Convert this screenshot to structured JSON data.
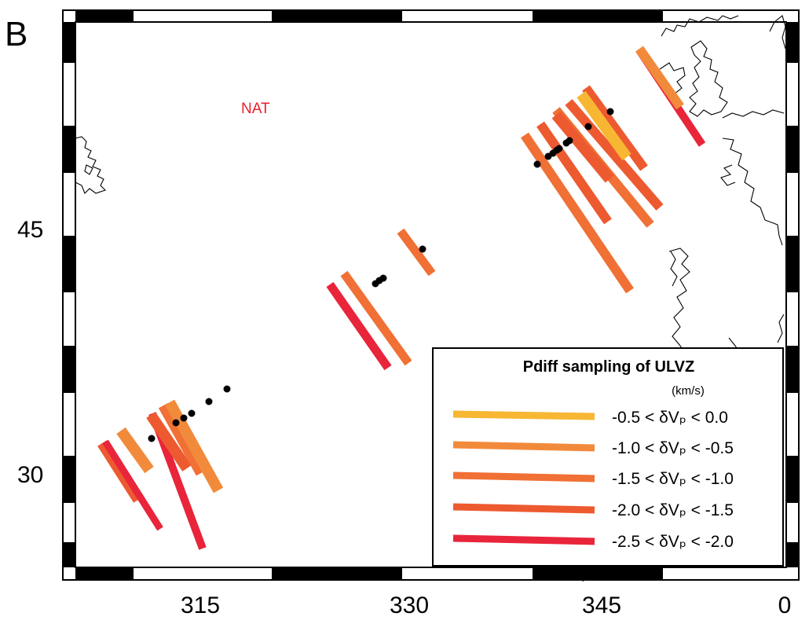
{
  "panel_label": "B",
  "region_label": "NAT",
  "axes": {
    "x_ticks": [
      "315",
      "330",
      "345",
      "0"
    ],
    "y_ticks": [
      "45",
      "30"
    ]
  },
  "legend": {
    "title": "Pdiff sampling of ULVZ",
    "units": "(km/s)",
    "entries": [
      {
        "range_label": "-0.5 < δVₚ <  0.0",
        "color": "#f7b733"
      },
      {
        "range_label": "-1.0 < δVₚ < -0.5",
        "color": "#f28a3b"
      },
      {
        "range_label": "-1.5 < δVₚ < -1.0",
        "color": "#f07035"
      },
      {
        "range_label": "-2.0 < δVₚ < -1.5",
        "color": "#ed5a30"
      },
      {
        "range_label": "-2.5 < δVₚ < -2.0",
        "color": "#e8253a"
      }
    ]
  },
  "colors": {
    "frame": "#000000",
    "coastline": "#000000",
    "station": "#000000",
    "region_label": "#e8202a"
  }
}
